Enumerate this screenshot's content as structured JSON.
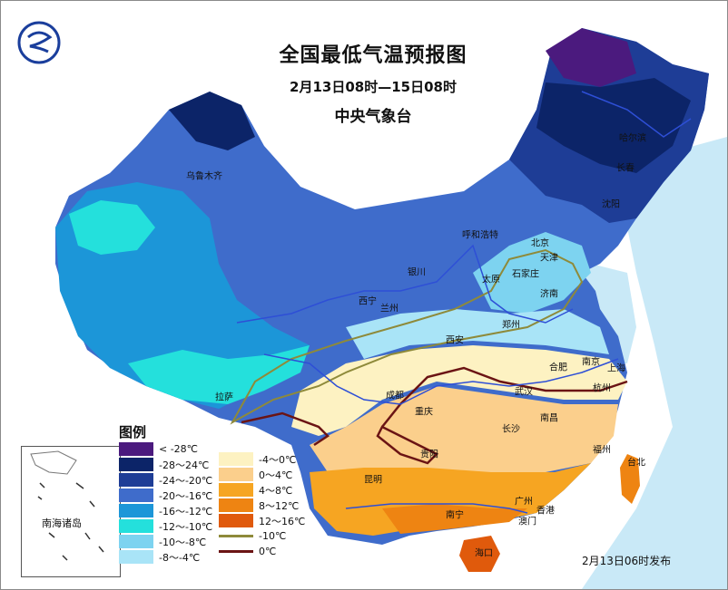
{
  "title": {
    "main": "全国最低气温预报图",
    "period": "2月13日08时—15日08时",
    "agency": "中央气象台"
  },
  "issue_text": "2月13日06时发布",
  "inset_label": "南海诸岛",
  "legend": {
    "title": "图例",
    "left_column": [
      {
        "label": "< -28℃",
        "color": "#4b1a7e"
      },
      {
        "label": "-28～24℃",
        "color": "#0c2468"
      },
      {
        "label": "-24～-20℃",
        "color": "#1e3d96"
      },
      {
        "label": "-20～-16℃",
        "color": "#3f6ccb"
      },
      {
        "label": "-16～-12℃",
        "color": "#1c96d8"
      },
      {
        "label": "-12～-10℃",
        "color": "#24e0dc"
      },
      {
        "label": "-10～-8℃",
        "color": "#7dd3f0"
      },
      {
        "label": "-8～-4℃",
        "color": "#a9e4f7"
      }
    ],
    "right_column": [
      {
        "label": "-4～0℃",
        "color": "#fdf2c2"
      },
      {
        "label": "0～4℃",
        "color": "#fbcf8c"
      },
      {
        "label": "4～8℃",
        "color": "#f6a522"
      },
      {
        "label": "8～12℃",
        "color": "#ee8412"
      },
      {
        "label": "12～16℃",
        "color": "#e05a0c"
      }
    ],
    "lines": [
      {
        "label": "-10℃",
        "color": "#8e8a3a"
      },
      {
        "label": "0℃",
        "color": "#6b1414"
      }
    ]
  },
  "cities": [
    {
      "id": "urumqi",
      "name": "乌鲁木齐"
    },
    {
      "id": "harbin",
      "name": "哈尔滨"
    },
    {
      "id": "changchun",
      "name": "长春"
    },
    {
      "id": "shenyang",
      "name": "沈阳"
    },
    {
      "id": "hohhot",
      "name": "呼和浩特"
    },
    {
      "id": "beijing",
      "name": "北京"
    },
    {
      "id": "tianjin",
      "name": "天津"
    },
    {
      "id": "yinchuan",
      "name": "银川"
    },
    {
      "id": "taiyuan",
      "name": "太原"
    },
    {
      "id": "shijiazhuang",
      "name": "石家庄"
    },
    {
      "id": "jinan",
      "name": "济南"
    },
    {
      "id": "xining",
      "name": "西宁"
    },
    {
      "id": "lanzhou",
      "name": "兰州"
    },
    {
      "id": "zhengzhou",
      "name": "郑州"
    },
    {
      "id": "xian",
      "name": "西安"
    },
    {
      "id": "hefei",
      "name": "合肥"
    },
    {
      "id": "nanjing",
      "name": "南京"
    },
    {
      "id": "shanghai",
      "name": "上海"
    },
    {
      "id": "lhasa",
      "name": "拉萨"
    },
    {
      "id": "chengdu",
      "name": "成都"
    },
    {
      "id": "wuhan",
      "name": "武汉"
    },
    {
      "id": "hangzhou",
      "name": "杭州"
    },
    {
      "id": "chongqing",
      "name": "重庆"
    },
    {
      "id": "changsha",
      "name": "长沙"
    },
    {
      "id": "nanchang",
      "name": "南昌"
    },
    {
      "id": "guiyang",
      "name": "贵阳"
    },
    {
      "id": "fuzhou",
      "name": "福州"
    },
    {
      "id": "taibei",
      "name": "台北"
    },
    {
      "id": "kunming",
      "name": "昆明"
    },
    {
      "id": "guangzhou",
      "name": "广州"
    },
    {
      "id": "nanning",
      "name": "南宁"
    },
    {
      "id": "hongkong",
      "name": "香港"
    },
    {
      "id": "macau",
      "name": "澳门"
    },
    {
      "id": "haikou",
      "name": "海口"
    }
  ]
}
